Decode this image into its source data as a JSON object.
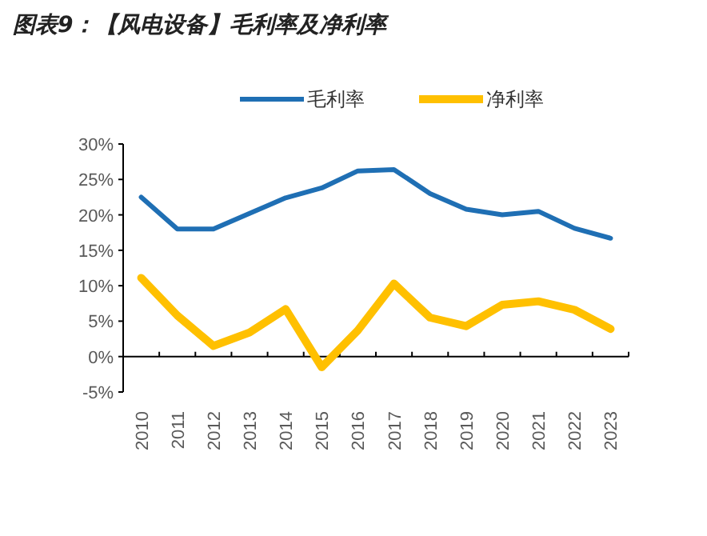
{
  "chart_data": {
    "type": "line",
    "title": "图表9：【风电设备】毛利率及净利率",
    "categories": [
      "2010",
      "2011",
      "2012",
      "2013",
      "2014",
      "2015",
      "2016",
      "2017",
      "2018",
      "2019",
      "2020",
      "2021",
      "2022",
      "2023"
    ],
    "series": [
      {
        "name": "毛利率",
        "color": "#1f6fb4",
        "values": [
          22.5,
          18.0,
          18.0,
          20.2,
          22.4,
          23.8,
          26.2,
          26.4,
          23.0,
          20.8,
          20.0,
          20.5,
          18.1,
          16.7
        ]
      },
      {
        "name": "净利率",
        "color": "#ffc000",
        "values": [
          11.1,
          5.8,
          1.5,
          3.4,
          6.7,
          -1.5,
          3.7,
          10.3,
          5.5,
          4.3,
          7.3,
          7.8,
          6.6,
          3.9
        ]
      }
    ],
    "ylim": [
      -5,
      30
    ],
    "yticks": [
      {
        "value": -5,
        "label": "-5%"
      },
      {
        "value": 0,
        "label": "0%"
      },
      {
        "value": 5,
        "label": "5%"
      },
      {
        "value": 10,
        "label": "10%"
      },
      {
        "value": 15,
        "label": "15%"
      },
      {
        "value": 20,
        "label": "20%"
      },
      {
        "value": 25,
        "label": "25%"
      },
      {
        "value": 30,
        "label": "30%"
      }
    ],
    "legend": "top"
  }
}
